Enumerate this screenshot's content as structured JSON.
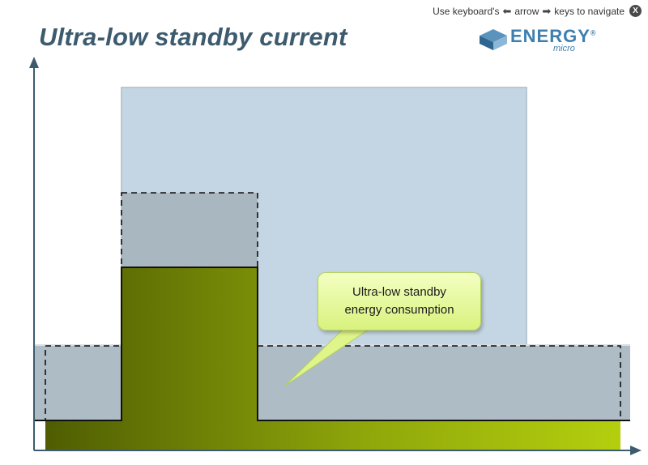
{
  "nav_hint": {
    "prefix": "Use keyboard's",
    "left_arrow_glyph": "⬅",
    "middle": "arrow",
    "right_arrow_glyph": "➡",
    "suffix": "keys to navigate",
    "close_glyph": "X"
  },
  "title": "Ultra-low standby current",
  "logo": {
    "word": "ENERGY",
    "registered": "®",
    "sub": "micro",
    "color": "#3d7fae"
  },
  "callout": {
    "line1": "Ultra-low standby",
    "line2": "energy consumption"
  },
  "colors": {
    "title": "#3d5b6e",
    "axis": "#3d5b6e",
    "light_blue_region": "#c4d6e3",
    "gray_dashed_region": "#a9b7c0",
    "green_fill_dark": "#5a6a05",
    "green_fill_light": "#b2cc0d",
    "callout_fill": "#e6f59a"
  }
}
